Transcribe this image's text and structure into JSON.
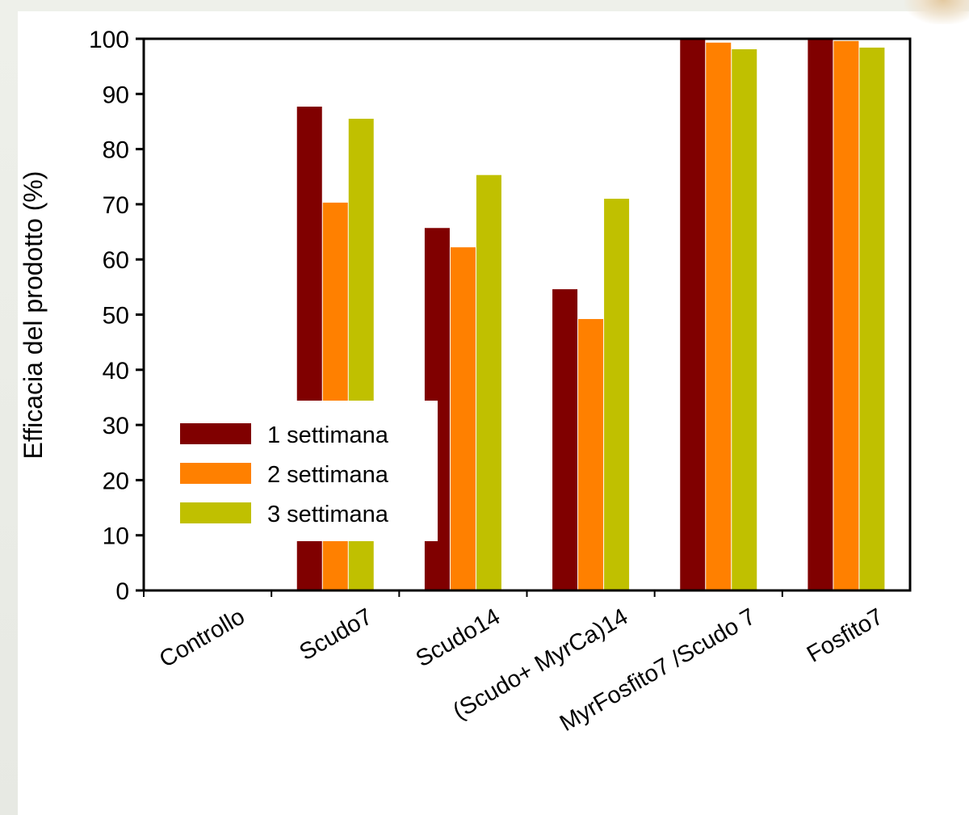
{
  "chart_data": {
    "type": "bar",
    "ylabel": "Efficacia del prodotto (%)",
    "ylim": [
      0,
      100
    ],
    "yticks": [
      0,
      10,
      20,
      30,
      40,
      50,
      60,
      70,
      80,
      90,
      100
    ],
    "categories": [
      "Controllo",
      "Scudo7",
      "Scudo14",
      "(Scudo+ MyrCa)14",
      "MyrFosfito7 /Scudo 7",
      "Fosfito7"
    ],
    "series": [
      {
        "name": "1 settimana",
        "color": "#800000",
        "values": [
          0,
          87.7,
          65.7,
          54.6,
          100,
          100
        ]
      },
      {
        "name": "2 settimana",
        "color": "#ff8000",
        "values": [
          0,
          70.3,
          62.2,
          49.2,
          99.3,
          99.6
        ]
      },
      {
        "name": "3 settimana",
        "color": "#c0c000",
        "values": [
          0,
          85.5,
          75.3,
          71.0,
          98.1,
          98.4
        ]
      }
    ],
    "legend_position": "lower-left",
    "grid": false
  }
}
